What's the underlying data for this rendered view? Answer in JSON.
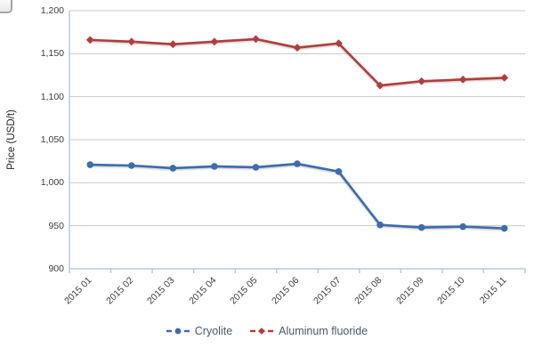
{
  "y_axis": {
    "title": "Price (USD/t)",
    "tick_labels": [
      "1,200",
      "1,150",
      "1,100",
      "1,050",
      "1,000",
      "950",
      "900"
    ],
    "tick_values": [
      1200,
      1150,
      1100,
      1050,
      1000,
      950,
      900
    ]
  },
  "chart_data": {
    "type": "line",
    "title": "",
    "xlabel": "",
    "ylabel": "Price (USD/t)",
    "categories": [
      "2015 01",
      "2015 02",
      "2015 03",
      "2015 04",
      "2015 05",
      "2015 06",
      "2015 07",
      "2015 08",
      "2015 09",
      "2015 10",
      "2015 11"
    ],
    "series": [
      {
        "name": "Cryolite",
        "color": "#3d6cab",
        "marker": "circle",
        "values": [
          1021,
          1020,
          1017,
          1019,
          1018,
          1022,
          1013,
          951,
          948,
          949,
          947
        ]
      },
      {
        "name": "Aluminum fluoride",
        "color": "#b03e3c",
        "marker": "diamond",
        "values": [
          1166,
          1164,
          1161,
          1164,
          1167,
          1157,
          1162,
          1113,
          1118,
          1120,
          1122
        ]
      }
    ],
    "ylim": [
      900,
      1200
    ],
    "ytick_step": 50,
    "grid": true,
    "legend_position": "bottom",
    "colors": {
      "gridline": "#c8c8c8",
      "axis_line": "#b5cbd9",
      "tick_text": "#3d3d3d",
      "legend_text": "#47596b"
    }
  }
}
